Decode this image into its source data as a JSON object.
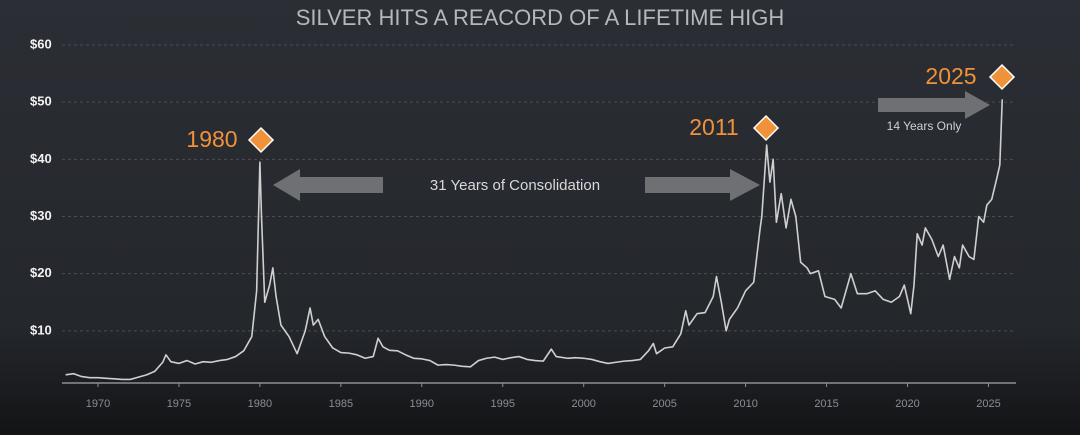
{
  "chart_data": {
    "type": "line",
    "title": "SILVER HITS A REACORD OF A LIFETIME HIGH",
    "annotations": [
      "1980",
      "31 Years of Consolidation",
      "2011",
      "14 Years Only",
      "2025"
    ],
    "color": "#cfcfcf",
    "grid": true,
    "xlim": [
      1968,
      2026.7
    ],
    "xticks": [
      1970,
      1975,
      1980,
      1985,
      1990,
      1995,
      2000,
      2005,
      2010,
      2015,
      2020,
      2025
    ],
    "ylim": [
      0,
      60
    ],
    "yticks": [
      {
        "value": 10,
        "label": "$10"
      },
      {
        "value": 20,
        "label": "$20"
      },
      {
        "value": 30,
        "label": "$30"
      },
      {
        "value": 40,
        "label": "$40"
      },
      {
        "value": 50,
        "label": "$50"
      },
      {
        "value": 60,
        "label": "$60"
      }
    ],
    "x": [
      1968.0,
      1968.5,
      1969,
      1969.5,
      1970,
      1970.5,
      1971,
      1971.5,
      1972,
      1972.5,
      1973,
      1973.5,
      1974,
      1974.2,
      1974.5,
      1975,
      1975.5,
      1976,
      1976.5,
      1977,
      1977.5,
      1978,
      1978.5,
      1979,
      1979.5,
      1979.8,
      1980.0,
      1980.1,
      1980.3,
      1980.6,
      1980.8,
      1981,
      1981.3,
      1981.8,
      1982.3,
      1982.8,
      1983.1,
      1983.3,
      1983.6,
      1984,
      1984.5,
      1985,
      1985.5,
      1986,
      1986.5,
      1987,
      1987.3,
      1987.6,
      1988,
      1988.5,
      1989,
      1989.5,
      1990,
      1990.5,
      1991,
      1991.5,
      1992,
      1992.5,
      1993,
      1993.5,
      1994,
      1994.5,
      1995,
      1995.5,
      1996,
      1996.5,
      1997,
      1997.5,
      1998,
      1998.3,
      1999,
      1999.5,
      2000,
      2000.5,
      2001,
      2001.5,
      2002,
      2002.5,
      2003,
      2003.5,
      2004,
      2004.3,
      2004.5,
      2005,
      2005.5,
      2006,
      2006.3,
      2006.5,
      2007,
      2007.5,
      2008,
      2008.2,
      2008.5,
      2008.8,
      2009,
      2009.5,
      2010,
      2010.5,
      2010.9,
      2011.0,
      2011.3,
      2011.5,
      2011.7,
      2011.9,
      2012.2,
      2012.5,
      2012.8,
      2013.1,
      2013.4,
      2013.8,
      2014,
      2014.5,
      2014.9,
      2015.5,
      2015.9,
      2016.5,
      2016.9,
      2017.5,
      2018,
      2018.5,
      2019,
      2019.5,
      2019.8,
      2020.2,
      2020.4,
      2020.6,
      2020.9,
      2021.1,
      2021.5,
      2021.9,
      2022.2,
      2022.6,
      2022.9,
      2023.2,
      2023.4,
      2023.8,
      2024.1,
      2024.4,
      2024.7,
      2024.9,
      2025.2,
      2025.5,
      2025.7,
      2025.85
    ],
    "values": [
      2.3,
      2.5,
      2.0,
      1.8,
      1.8,
      1.7,
      1.6,
      1.5,
      1.5,
      1.9,
      2.3,
      2.9,
      4.5,
      5.8,
      4.6,
      4.3,
      4.8,
      4.2,
      4.6,
      4.5,
      4.8,
      5.0,
      5.5,
      6.5,
      9.0,
      17,
      39.5,
      30,
      15,
      18,
      21,
      16,
      11,
      9,
      6,
      10,
      14,
      11,
      12,
      9,
      7,
      6.2,
      6.1,
      5.8,
      5.2,
      5.5,
      8.7,
      7.2,
      6.6,
      6.5,
      5.8,
      5.2,
      5.1,
      4.8,
      4.0,
      4.1,
      4.0,
      3.8,
      3.7,
      4.8,
      5.2,
      5.4,
      5.0,
      5.3,
      5.5,
      5.0,
      4.8,
      4.7,
      6.8,
      5.5,
      5.2,
      5.3,
      5.2,
      5.0,
      4.6,
      4.3,
      4.5,
      4.7,
      4.8,
      5.0,
      6.5,
      7.8,
      6.0,
      7.0,
      7.2,
      9.5,
      13.5,
      11,
      13,
      13.2,
      16,
      19.5,
      15,
      10,
      12,
      14,
      17,
      18.5,
      28,
      30,
      42.5,
      36,
      40,
      29,
      34,
      28,
      33,
      30,
      22,
      21,
      20,
      20.5,
      16,
      15.5,
      14,
      20,
      16.5,
      16.5,
      17,
      15.5,
      15,
      16,
      18,
      13,
      18,
      27,
      25,
      28,
      26,
      23,
      25,
      19,
      23,
      21,
      25,
      23,
      22.5,
      30,
      29,
      32,
      33,
      36.5,
      39,
      50.5
    ]
  }
}
